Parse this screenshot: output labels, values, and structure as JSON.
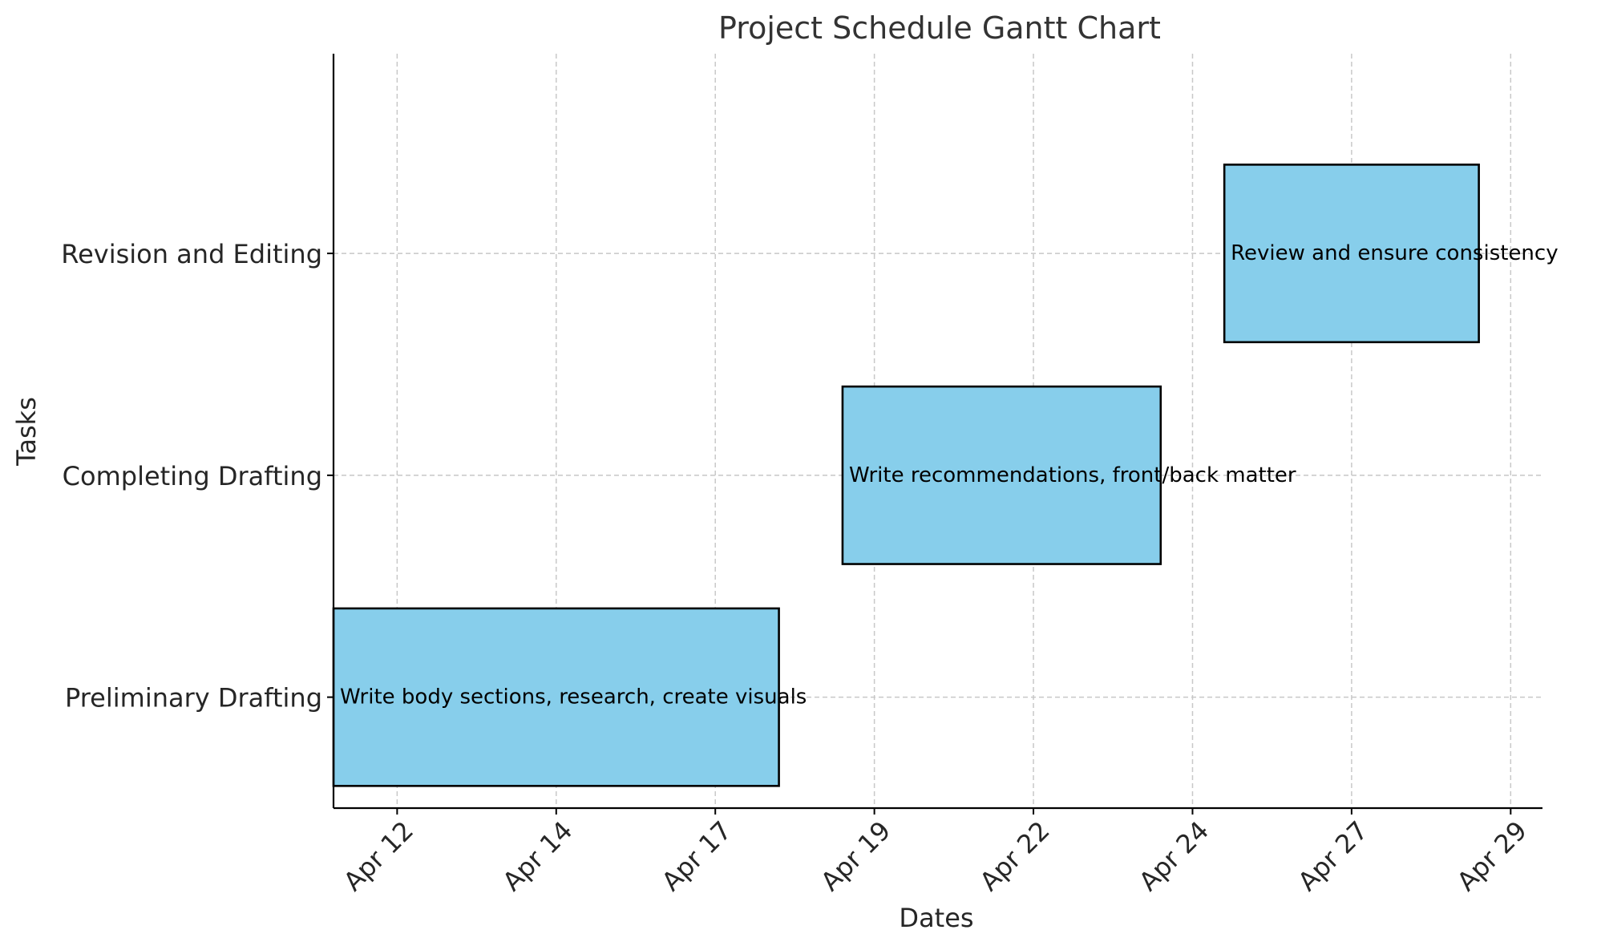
{
  "chart_data": {
    "type": "gantt",
    "title": "Project Schedule Gantt Chart",
    "xlabel": "Dates",
    "ylabel": "Tasks",
    "xlim": [
      "2024-04-11",
      "2024-04-30"
    ],
    "x_ticks": [
      {
        "date": "2024-04-12",
        "label": "Apr 12"
      },
      {
        "date": "2024-04-14.5",
        "label": "Apr 14"
      },
      {
        "date": "2024-04-17",
        "label": "Apr 17"
      },
      {
        "date": "2024-04-19.5",
        "label": "Apr 19"
      },
      {
        "date": "2024-04-22",
        "label": "Apr 22"
      },
      {
        "date": "2024-04-24.5",
        "label": "Apr 24"
      },
      {
        "date": "2024-04-27",
        "label": "Apr 27"
      },
      {
        "date": "2024-04-29.5",
        "label": "Apr 29"
      }
    ],
    "tasks": [
      {
        "name": "Preliminary Drafting",
        "start": "2024-04-11",
        "end": "2024-04-18",
        "description": "Write body sections, research, create visuals"
      },
      {
        "name": "Completing Drafting",
        "start": "2024-04-19",
        "end": "2024-04-24",
        "description": "Write recommendations, front/back matter"
      },
      {
        "name": "Revision and Editing",
        "start": "2024-04-25",
        "end": "2024-04-29",
        "description": "Review and ensure consistency"
      }
    ],
    "grid": true,
    "bar_color": "#87ceeb",
    "edge_color": "#000000"
  }
}
